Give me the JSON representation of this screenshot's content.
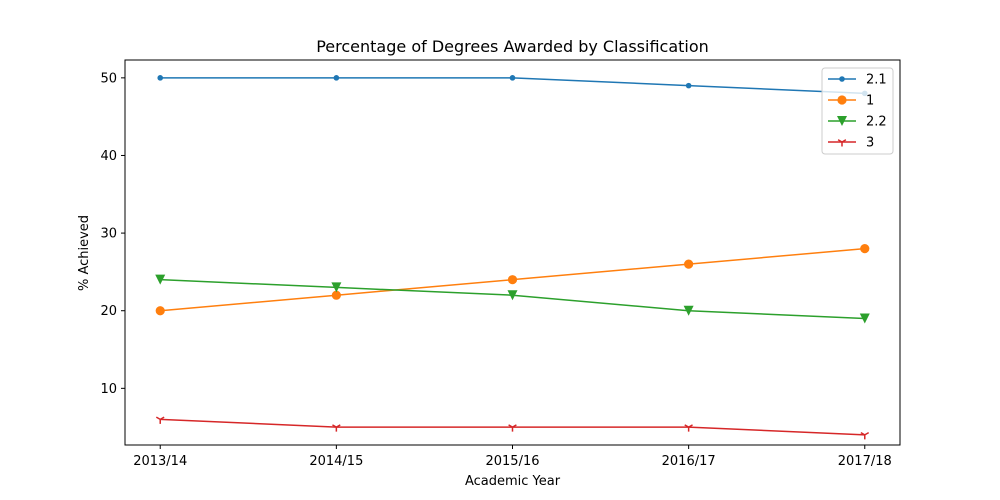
{
  "chart_data": {
    "type": "line",
    "title": "Percentage of Degrees Awarded by Classification",
    "xlabel": "Academic Year",
    "ylabel": "% Achieved",
    "categories": [
      "2013/14",
      "2014/15",
      "2015/16",
      "2016/17",
      "2017/18"
    ],
    "ylim": [
      2.7,
      52.3
    ],
    "yticks": [
      10,
      20,
      30,
      40,
      50
    ],
    "grid": false,
    "legend_position": "top-right",
    "series": [
      {
        "name": "2.1",
        "values": [
          50,
          50,
          50,
          49,
          48
        ],
        "color": "#1f77b4",
        "marker": "point"
      },
      {
        "name": "1",
        "values": [
          20,
          22,
          24,
          26,
          28
        ],
        "color": "#ff7f0e",
        "marker": "circle"
      },
      {
        "name": "2.2",
        "values": [
          24,
          23,
          22,
          20,
          19
        ],
        "color": "#2ca02c",
        "marker": "triangle-down"
      },
      {
        "name": "3",
        "values": [
          6,
          5,
          5,
          5,
          4
        ],
        "color": "#d62728",
        "marker": "tri-down"
      }
    ]
  }
}
